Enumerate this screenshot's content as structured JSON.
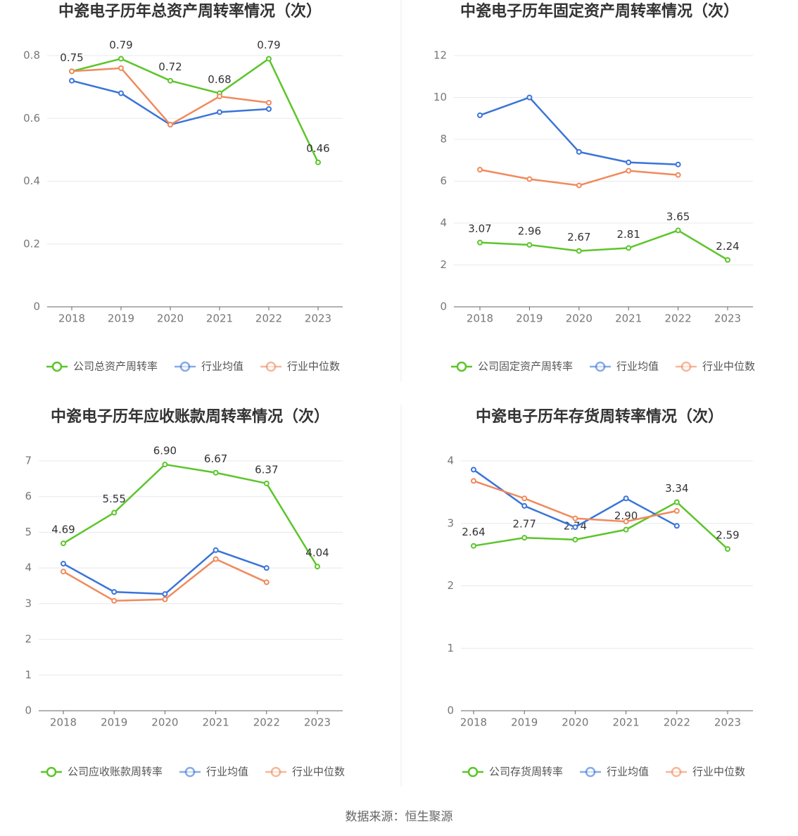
{
  "chart_data": [
    {
      "type": "line",
      "title": "中瓷电子历年总资产周转率情况（次）",
      "categories": [
        "2018",
        "2019",
        "2020",
        "2021",
        "2022",
        "2023"
      ],
      "series": [
        {
          "name": "公司总资产周转率",
          "color": "#5cc52a",
          "values": [
            0.75,
            0.79,
            0.72,
            0.68,
            0.79,
            0.46
          ],
          "value_labels": [
            "0.75",
            "0.79",
            "0.72",
            "0.68",
            "0.79",
            "0.46"
          ]
        },
        {
          "name": "行业均值",
          "color": "#3a74d8",
          "values": [
            0.72,
            0.68,
            0.58,
            0.62,
            0.63,
            null
          ]
        },
        {
          "name": "行业中位数",
          "color": "#f08a5c",
          "values": [
            0.75,
            0.76,
            0.58,
            0.67,
            0.65,
            null
          ]
        }
      ],
      "ylim": [
        0,
        0.8
      ],
      "yticks": [
        0,
        0.2,
        0.4,
        0.6,
        0.8
      ],
      "grid": true
    },
    {
      "type": "line",
      "title": "中瓷电子历年固定资产周转率情况（次）",
      "categories": [
        "2018",
        "2019",
        "2020",
        "2021",
        "2022",
        "2023"
      ],
      "series": [
        {
          "name": "公司固定资产周转率",
          "color": "#5cc52a",
          "values": [
            3.07,
            2.96,
            2.67,
            2.81,
            3.65,
            2.24
          ],
          "value_labels": [
            "3.07",
            "2.96",
            "2.67",
            "2.81",
            "3.65",
            "2.24"
          ]
        },
        {
          "name": "行业均值",
          "color": "#3a74d8",
          "values": [
            9.15,
            10.0,
            7.4,
            6.9,
            6.8,
            null
          ]
        },
        {
          "name": "行业中位数",
          "color": "#f08a5c",
          "values": [
            6.55,
            6.1,
            5.8,
            6.5,
            6.3,
            null
          ]
        }
      ],
      "ylim": [
        0,
        12
      ],
      "yticks": [
        0,
        2,
        4,
        6,
        8,
        10,
        12
      ],
      "grid": true
    },
    {
      "type": "line",
      "title": "中瓷电子历年应收账款周转率情况（次）",
      "categories": [
        "2018",
        "2019",
        "2020",
        "2021",
        "2022",
        "2023"
      ],
      "series": [
        {
          "name": "公司应收账款周转率",
          "color": "#5cc52a",
          "values": [
            4.69,
            5.55,
            6.9,
            6.67,
            6.37,
            4.04
          ],
          "value_labels": [
            "4.69",
            "5.55",
            "6.90",
            "6.67",
            "6.37",
            "4.04"
          ]
        },
        {
          "name": "行业均值",
          "color": "#3a74d8",
          "values": [
            4.12,
            3.33,
            3.27,
            4.5,
            4.0,
            null
          ]
        },
        {
          "name": "行业中位数",
          "color": "#f08a5c",
          "values": [
            3.9,
            3.08,
            3.12,
            4.25,
            3.6,
            null
          ]
        }
      ],
      "ylim": [
        0,
        7
      ],
      "yticks": [
        0,
        1,
        2,
        3,
        4,
        5,
        6,
        7
      ],
      "grid": true
    },
    {
      "type": "line",
      "title": "中瓷电子历年存货周转率情况（次）",
      "categories": [
        "2018",
        "2019",
        "2020",
        "2021",
        "2022",
        "2023"
      ],
      "series": [
        {
          "name": "公司存货周转率",
          "color": "#5cc52a",
          "values": [
            2.64,
            2.77,
            2.74,
            2.9,
            3.34,
            2.59
          ],
          "value_labels": [
            "2.64",
            "2.77",
            "2.74",
            "2.90",
            "3.34",
            "2.59"
          ]
        },
        {
          "name": "行业均值",
          "color": "#3a74d8",
          "values": [
            3.86,
            3.28,
            2.94,
            3.4,
            2.96,
            null
          ]
        },
        {
          "name": "行业中位数",
          "color": "#f08a5c",
          "values": [
            3.68,
            3.4,
            3.08,
            3.03,
            3.2,
            null
          ]
        }
      ],
      "ylim": [
        0,
        4
      ],
      "yticks": [
        0,
        1,
        2,
        3,
        4
      ],
      "grid": true
    }
  ],
  "source": "数据来源：恒生聚源"
}
